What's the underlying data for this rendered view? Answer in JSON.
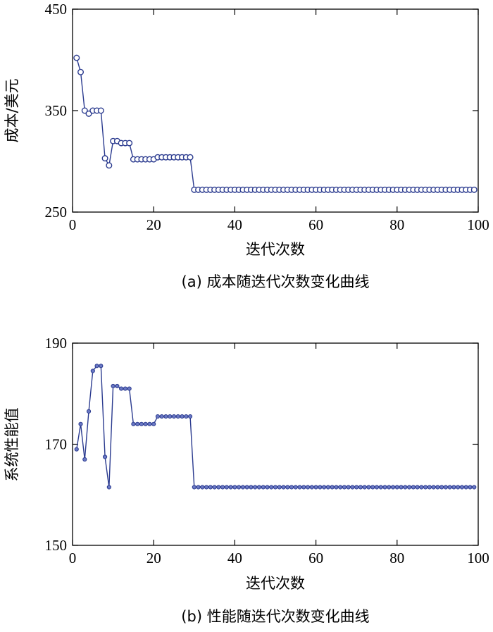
{
  "chart_data": [
    {
      "type": "line",
      "caption": "(a) 成本随迭代次数变化曲线",
      "xlabel": "迭代次数",
      "ylabel": "成本/美元",
      "xlim": [
        0,
        100
      ],
      "ylim": [
        250,
        450
      ],
      "xticks": [
        0,
        20,
        40,
        60,
        80,
        100
      ],
      "yticks": [
        250,
        350,
        450
      ],
      "marker": "open-circle",
      "color": "#2b3b8f",
      "series": [
        {
          "x": [
            1,
            2,
            3,
            4,
            5,
            6,
            7,
            8,
            9,
            10,
            11,
            12,
            13,
            14,
            15,
            16,
            17,
            18,
            19,
            20,
            21,
            22,
            23,
            24,
            25,
            26,
            27,
            28,
            29,
            30,
            31,
            32,
            33,
            34,
            35,
            36,
            37,
            38,
            39,
            40,
            41,
            42,
            43,
            44,
            45,
            46,
            47,
            48,
            49,
            50,
            51,
            52,
            53,
            54,
            55,
            56,
            57,
            58,
            59,
            60,
            61,
            62,
            63,
            64,
            65,
            66,
            67,
            68,
            69,
            70,
            71,
            72,
            73,
            74,
            75,
            76,
            77,
            78,
            79,
            80,
            81,
            82,
            83,
            84,
            85,
            86,
            87,
            88,
            89,
            90,
            91,
            92,
            93,
            94,
            95,
            96,
            97,
            98,
            99
          ],
          "values": [
            402,
            388,
            350,
            347,
            350,
            350,
            350,
            303,
            296,
            320,
            320,
            318,
            318,
            318,
            302,
            302,
            302,
            302,
            302,
            302,
            304,
            304,
            304,
            304,
            304,
            304,
            304,
            304,
            304,
            272,
            272,
            272,
            272,
            272,
            272,
            272,
            272,
            272,
            272,
            272,
            272,
            272,
            272,
            272,
            272,
            272,
            272,
            272,
            272,
            272,
            272,
            272,
            272,
            272,
            272,
            272,
            272,
            272,
            272,
            272,
            272,
            272,
            272,
            272,
            272,
            272,
            272,
            272,
            272,
            272,
            272,
            272,
            272,
            272,
            272,
            272,
            272,
            272,
            272,
            272,
            272,
            272,
            272,
            272,
            272,
            272,
            272,
            272,
            272,
            272,
            272,
            272,
            272,
            272,
            272,
            272,
            272,
            272,
            272
          ]
        }
      ]
    },
    {
      "type": "line",
      "caption": "(b) 性能随迭代次数变化曲线",
      "xlabel": "迭代次数",
      "ylabel": "系统性能值",
      "xlim": [
        0,
        100
      ],
      "ylim": [
        150,
        190
      ],
      "xticks": [
        0,
        20,
        40,
        60,
        80,
        100
      ],
      "yticks": [
        150,
        170,
        190
      ],
      "marker": "filled-circle",
      "color": "#2b3b8f",
      "series": [
        {
          "x": [
            1,
            2,
            3,
            4,
            5,
            6,
            7,
            8,
            9,
            10,
            11,
            12,
            13,
            14,
            15,
            16,
            17,
            18,
            19,
            20,
            21,
            22,
            23,
            24,
            25,
            26,
            27,
            28,
            29,
            30,
            31,
            32,
            33,
            34,
            35,
            36,
            37,
            38,
            39,
            40,
            41,
            42,
            43,
            44,
            45,
            46,
            47,
            48,
            49,
            50,
            51,
            52,
            53,
            54,
            55,
            56,
            57,
            58,
            59,
            60,
            61,
            62,
            63,
            64,
            65,
            66,
            67,
            68,
            69,
            70,
            71,
            72,
            73,
            74,
            75,
            76,
            77,
            78,
            79,
            80,
            81,
            82,
            83,
            84,
            85,
            86,
            87,
            88,
            89,
            90,
            91,
            92,
            93,
            94,
            95,
            96,
            97,
            98,
            99
          ],
          "values": [
            169,
            174,
            167,
            176.5,
            184.5,
            185.5,
            185.5,
            167.5,
            161.5,
            181.5,
            181.5,
            181,
            181,
            181,
            174,
            174,
            174,
            174,
            174,
            174,
            175.5,
            175.5,
            175.5,
            175.5,
            175.5,
            175.5,
            175.5,
            175.5,
            175.5,
            161.5,
            161.5,
            161.5,
            161.5,
            161.5,
            161.5,
            161.5,
            161.5,
            161.5,
            161.5,
            161.5,
            161.5,
            161.5,
            161.5,
            161.5,
            161.5,
            161.5,
            161.5,
            161.5,
            161.5,
            161.5,
            161.5,
            161.5,
            161.5,
            161.5,
            161.5,
            161.5,
            161.5,
            161.5,
            161.5,
            161.5,
            161.5,
            161.5,
            161.5,
            161.5,
            161.5,
            161.5,
            161.5,
            161.5,
            161.5,
            161.5,
            161.5,
            161.5,
            161.5,
            161.5,
            161.5,
            161.5,
            161.5,
            161.5,
            161.5,
            161.5,
            161.5,
            161.5,
            161.5,
            161.5,
            161.5,
            161.5,
            161.5,
            161.5,
            161.5,
            161.5,
            161.5,
            161.5,
            161.5,
            161.5,
            161.5,
            161.5,
            161.5,
            161.5,
            161.5
          ]
        }
      ]
    }
  ]
}
